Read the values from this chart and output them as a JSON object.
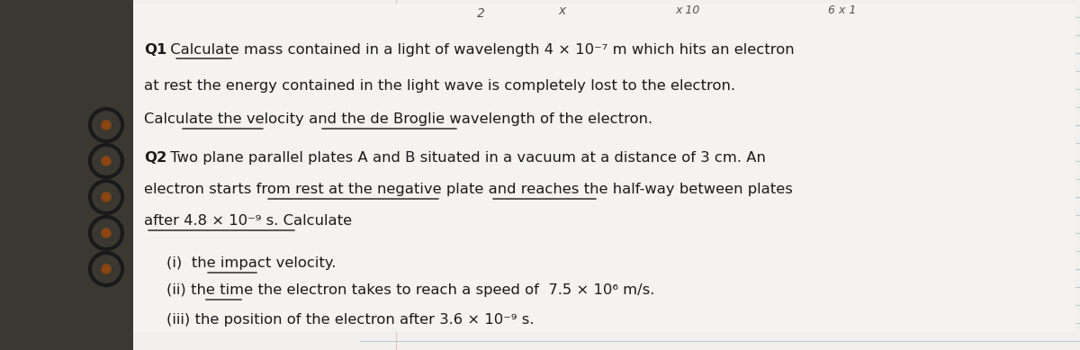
{
  "figsize": [
    12.0,
    3.89
  ],
  "dpi": 100,
  "bg_color": "#5a5a4a",
  "paper_color": "#f0eeea",
  "text_color": "#1a1a1a",
  "notebook_line_color": "#8ab4d4",
  "font_size": 11.8,
  "q1_line1": "Q1 Calculate mass̲ contained in a light of wavelength 4 × 10⁻⁷ m which hits an electron",
  "q1_line2": "at rest the energy contained in the light wave is completely lost to the electron.",
  "q1_line3": "Calculate the velocity̲ and the de Broglie wavelength̲ of the electron.",
  "q2_line1": "Q2 Two plane parallel plates A and B situated in a vacuum at a distance of 3 cm. An",
  "q2_line2": "electron starts from rest at the negative plate̲ and reaches the half-way̲ between plates",
  "q2_line3": "after 4.8 × 10⁻⁹ s. Calculate",
  "sub1": "(i)  the impact̲ velocity.",
  "sub2": "(ii) the time̲ the electron takes to reach a speed of  7.5 × 10⁶ m/s.",
  "sub3": "(iii) the position of the electron after 3.6 × 10⁻⁹ s."
}
